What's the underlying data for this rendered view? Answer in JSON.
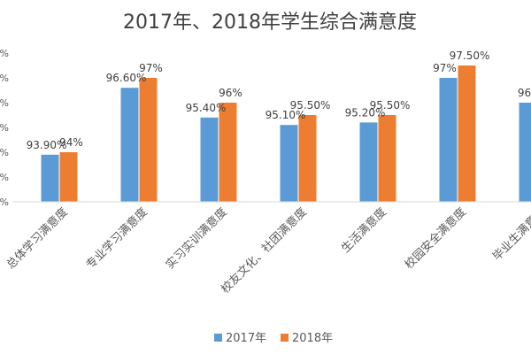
{
  "chart_data": {
    "type": "bar",
    "title": "2017年、2018年学生综合满意度",
    "xlabel": "",
    "ylabel": "",
    "ylim": [
      92,
      98
    ],
    "yticks": [
      "%",
      "%",
      "%",
      "%",
      "%",
      "%",
      "%"
    ],
    "grid": false,
    "legend_position": "bottom",
    "categories": [
      "总体学习满意度",
      "专业学习满意度",
      "实习实训满意度",
      "校友文化、社团满意度",
      "生活满意度",
      "校园安全满意度",
      "毕业生满意度"
    ],
    "series": [
      {
        "name": "2017年",
        "color": "#5B9BD5",
        "values": [
          93.9,
          96.6,
          95.4,
          95.1,
          95.2,
          97,
          96
        ],
        "labels": [
          "93.90%",
          "96.60%",
          "95.40%",
          "95.10%",
          "95.20%",
          "97%",
          "96"
        ]
      },
      {
        "name": "2018年",
        "color": "#ED7D31",
        "values": [
          94,
          97,
          96,
          95.5,
          95.5,
          97.5,
          null
        ],
        "labels": [
          "94%",
          "97%",
          "96%",
          "95.50%",
          "95.50%",
          "97.50%",
          ""
        ]
      }
    ]
  }
}
